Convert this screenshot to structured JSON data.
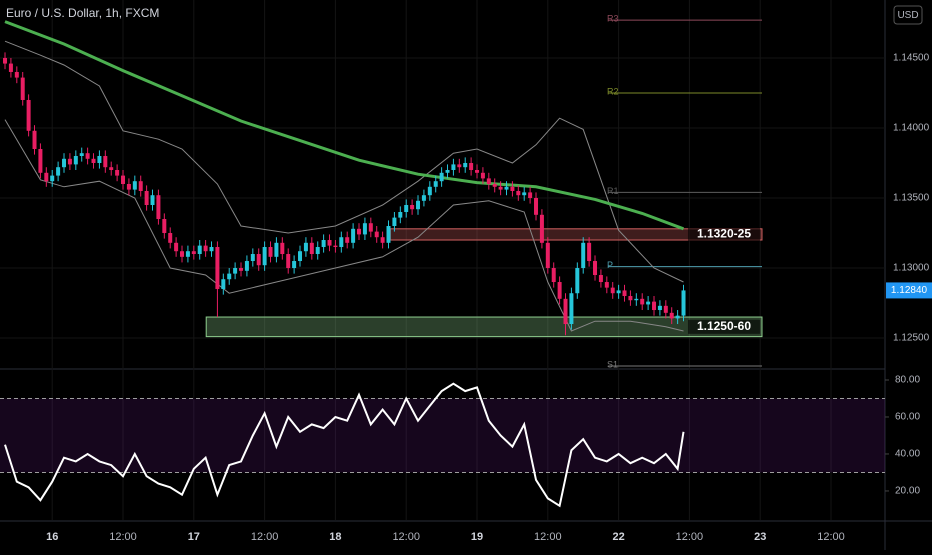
{
  "header": {
    "title": "Euro / U.S. Dollar, 1h, FXCM",
    "currency": "USD"
  },
  "chart_data": [
    {
      "type": "candlestick",
      "x": [
        0,
        1,
        2,
        3,
        4,
        5,
        6,
        7,
        8,
        9,
        10,
        11,
        12,
        13,
        14,
        15,
        16,
        17,
        18,
        19,
        20,
        21,
        22,
        23,
        24,
        25,
        26,
        27,
        28,
        29,
        30,
        31,
        32,
        33,
        34,
        35,
        36,
        37,
        38,
        39,
        40,
        41,
        42,
        43,
        44,
        45,
        46,
        47,
        48,
        49,
        50,
        51,
        52,
        53,
        54,
        55,
        56,
        57,
        58,
        59,
        60,
        61,
        62,
        63,
        64,
        65,
        66,
        67,
        68,
        69,
        70,
        71,
        72,
        73,
        74,
        75,
        76,
        77,
        78,
        79,
        80,
        81,
        82,
        83,
        84,
        85,
        86,
        87,
        88,
        89,
        90,
        91,
        92,
        93,
        94,
        95,
        96,
        97,
        98,
        99,
        100,
        101,
        102,
        103,
        104,
        105,
        106,
        107,
        108,
        109,
        110,
        111,
        112,
        113,
        114,
        115
      ],
      "open": [
        1.145,
        1.1446,
        1.144,
        1.1436,
        1.142,
        1.1398,
        1.1385,
        1.1368,
        1.1362,
        1.1366,
        1.1372,
        1.1378,
        1.1374,
        1.138,
        1.1382,
        1.1378,
        1.1375,
        1.138,
        1.1372,
        1.137,
        1.1366,
        1.136,
        1.1356,
        1.1362,
        1.1355,
        1.1345,
        1.1352,
        1.1335,
        1.1325,
        1.1318,
        1.1312,
        1.1308,
        1.1312,
        1.131,
        1.1316,
        1.1312,
        1.1315,
        1.1285,
        1.1292,
        1.1296,
        1.13,
        1.1298,
        1.1305,
        1.131,
        1.1302,
        1.1315,
        1.1308,
        1.1318,
        1.131,
        1.13,
        1.1305,
        1.1312,
        1.1318,
        1.131,
        1.1315,
        1.132,
        1.1316,
        1.1315,
        1.1322,
        1.1318,
        1.1328,
        1.1324,
        1.1332,
        1.1326,
        1.1322,
        1.1318,
        1.133,
        1.1336,
        1.134,
        1.1345,
        1.1342,
        1.1348,
        1.1352,
        1.1358,
        1.1362,
        1.1368,
        1.137,
        1.1374,
        1.1372,
        1.1375,
        1.137,
        1.1368,
        1.1364,
        1.136,
        1.1358,
        1.1356,
        1.1358,
        1.1355,
        1.1352,
        1.1354,
        1.135,
        1.1338,
        1.1318,
        1.13,
        1.129,
        1.1278,
        1.126,
        1.1282,
        1.13,
        1.1318,
        1.1305,
        1.1295,
        1.129,
        1.1286,
        1.1282,
        1.1284,
        1.128,
        1.1277,
        1.1278,
        1.1274,
        1.1276,
        1.127,
        1.1273,
        1.1268,
        1.1264,
        1.1266
      ],
      "high": [
        1.1454,
        1.145,
        1.1444,
        1.144,
        1.1424,
        1.1402,
        1.1389,
        1.1372,
        1.137,
        1.1376,
        1.1382,
        1.1382,
        1.1384,
        1.1386,
        1.1386,
        1.1382,
        1.1384,
        1.1384,
        1.1376,
        1.1374,
        1.137,
        1.1364,
        1.1366,
        1.1366,
        1.1359,
        1.1356,
        1.1356,
        1.1339,
        1.1329,
        1.1322,
        1.1316,
        1.1316,
        1.1316,
        1.132,
        1.132,
        1.1319,
        1.1319,
        1.1296,
        1.13,
        1.1304,
        1.1304,
        1.1309,
        1.1314,
        1.1314,
        1.1319,
        1.1319,
        1.1322,
        1.1322,
        1.1314,
        1.1309,
        1.1316,
        1.1322,
        1.1322,
        1.1319,
        1.1324,
        1.1324,
        1.132,
        1.1326,
        1.1326,
        1.1332,
        1.1332,
        1.1336,
        1.1336,
        1.133,
        1.1326,
        1.1334,
        1.134,
        1.1344,
        1.1349,
        1.1349,
        1.1352,
        1.1356,
        1.1362,
        1.1366,
        1.1372,
        1.1374,
        1.1378,
        1.1378,
        1.1379,
        1.1379,
        1.1374,
        1.1372,
        1.1368,
        1.1364,
        1.1362,
        1.1362,
        1.1362,
        1.1359,
        1.1358,
        1.1358,
        1.1354,
        1.1342,
        1.1322,
        1.1304,
        1.1294,
        1.1282,
        1.1286,
        1.1304,
        1.1322,
        1.1322,
        1.1309,
        1.1299,
        1.1294,
        1.129,
        1.1288,
        1.1288,
        1.1284,
        1.1282,
        1.1282,
        1.128,
        1.128,
        1.1277,
        1.1277,
        1.1272,
        1.127,
        1.1288
      ],
      "low": [
        1.1442,
        1.1436,
        1.1432,
        1.1416,
        1.1394,
        1.1381,
        1.1364,
        1.1358,
        1.1358,
        1.1362,
        1.1368,
        1.137,
        1.137,
        1.1376,
        1.1374,
        1.1371,
        1.1371,
        1.1368,
        1.1366,
        1.1362,
        1.1356,
        1.1352,
        1.1352,
        1.1351,
        1.1341,
        1.1341,
        1.1331,
        1.1321,
        1.1314,
        1.1308,
        1.1304,
        1.1304,
        1.1306,
        1.1306,
        1.1308,
        1.1308,
        1.1265,
        1.1281,
        1.1288,
        1.1292,
        1.1294,
        1.1294,
        1.1301,
        1.1298,
        1.1298,
        1.1304,
        1.1304,
        1.1306,
        1.1296,
        1.1296,
        1.1301,
        1.1308,
        1.1306,
        1.1306,
        1.1311,
        1.1312,
        1.1311,
        1.1311,
        1.1314,
        1.1314,
        1.132,
        1.132,
        1.1322,
        1.1318,
        1.1314,
        1.1314,
        1.1326,
        1.1332,
        1.1336,
        1.1338,
        1.1338,
        1.1344,
        1.1348,
        1.1354,
        1.1358,
        1.1364,
        1.1366,
        1.1368,
        1.1368,
        1.1366,
        1.1364,
        1.136,
        1.1356,
        1.1354,
        1.1352,
        1.1352,
        1.1351,
        1.1348,
        1.1348,
        1.1346,
        1.1334,
        1.1314,
        1.1296,
        1.1286,
        1.1274,
        1.1252,
        1.1256,
        1.1278,
        1.1296,
        1.1301,
        1.1291,
        1.1286,
        1.1282,
        1.1278,
        1.1278,
        1.1276,
        1.1273,
        1.1273,
        1.127,
        1.127,
        1.1266,
        1.1266,
        1.1264,
        1.126,
        1.126,
        1.1262
      ],
      "close": [
        1.1446,
        1.144,
        1.1436,
        1.142,
        1.1398,
        1.1385,
        1.1368,
        1.1362,
        1.1366,
        1.1372,
        1.1378,
        1.1374,
        1.138,
        1.1382,
        1.1378,
        1.1375,
        1.138,
        1.1372,
        1.137,
        1.1366,
        1.136,
        1.1356,
        1.1362,
        1.1355,
        1.1345,
        1.1352,
        1.1335,
        1.1325,
        1.1318,
        1.1312,
        1.1308,
        1.1312,
        1.131,
        1.1316,
        1.1312,
        1.1315,
        1.1285,
        1.1292,
        1.1296,
        1.13,
        1.1298,
        1.1305,
        1.131,
        1.1302,
        1.1315,
        1.1308,
        1.1318,
        1.131,
        1.13,
        1.1305,
        1.1312,
        1.1318,
        1.131,
        1.1315,
        1.132,
        1.1316,
        1.1315,
        1.1322,
        1.1318,
        1.1328,
        1.1324,
        1.1332,
        1.1326,
        1.1322,
        1.1318,
        1.133,
        1.1336,
        1.134,
        1.1345,
        1.1342,
        1.1348,
        1.1352,
        1.1358,
        1.1362,
        1.1368,
        1.137,
        1.1374,
        1.1372,
        1.1375,
        1.137,
        1.1368,
        1.1364,
        1.136,
        1.1358,
        1.1356,
        1.1358,
        1.1355,
        1.1352,
        1.1354,
        1.135,
        1.1338,
        1.1318,
        1.13,
        1.129,
        1.1278,
        1.126,
        1.1282,
        1.13,
        1.1318,
        1.1305,
        1.1295,
        1.129,
        1.1286,
        1.1282,
        1.1284,
        1.128,
        1.1277,
        1.1278,
        1.1274,
        1.1276,
        1.127,
        1.1273,
        1.1268,
        1.1264,
        1.1266,
        1.1284
      ],
      "up_color": "#26c6da",
      "down_color": "#e91e63",
      "xlim": [
        -0.85,
        149.15
      ],
      "ylim": [
        1.12286,
        1.14914
      ],
      "yticks": [
        {
          "value": 1.145,
          "label": "1.14500"
        },
        {
          "value": 1.14,
          "label": "1.14000"
        },
        {
          "value": 1.135,
          "label": "1.13500"
        },
        {
          "value": 1.13,
          "label": "1.13000"
        },
        {
          "value": 1.125,
          "label": "1.12500"
        }
      ],
      "xticks": [
        {
          "value": 8,
          "label": "16"
        },
        {
          "value": 20,
          "label": "12:00"
        },
        {
          "value": 32,
          "label": "17"
        },
        {
          "value": 44,
          "label": "12:00"
        },
        {
          "value": 56,
          "label": "18"
        },
        {
          "value": 68,
          "label": "12:00"
        },
        {
          "value": 80,
          "label": "19"
        },
        {
          "value": 92,
          "label": "12:00"
        },
        {
          "value": 104,
          "label": "22"
        },
        {
          "value": 116,
          "label": "12:00"
        },
        {
          "value": 128,
          "label": "23"
        },
        {
          "value": 140,
          "label": "12:00"
        }
      ],
      "grid": true,
      "last_price": {
        "value": 1.1284,
        "label": "1.12840",
        "color": "#2196f3"
      },
      "lines": [
        {
          "color": "#888888",
          "x": [
            0,
            6,
            10,
            16,
            20,
            26,
            30,
            36,
            40,
            48,
            56,
            64,
            70,
            76,
            80,
            86,
            90,
            94,
            98,
            104,
            110,
            115
          ],
          "values": [
            1.1462,
            1.1452,
            1.1445,
            1.143,
            1.1398,
            1.1392,
            1.1385,
            1.136,
            1.133,
            1.1325,
            1.133,
            1.1345,
            1.1362,
            1.1382,
            1.1385,
            1.1375,
            1.1388,
            1.1407,
            1.1399,
            1.1327,
            1.13,
            1.129
          ]
        },
        {
          "color": "#888888",
          "x": [
            0,
            6,
            10,
            16,
            22,
            28,
            34,
            38,
            46,
            56,
            64,
            70,
            76,
            82,
            88,
            92,
            96,
            100,
            106,
            112,
            115
          ],
          "values": [
            1.1406,
            1.1363,
            1.1358,
            1.1362,
            1.135,
            1.13,
            1.1295,
            1.1282,
            1.129,
            1.13,
            1.1308,
            1.1322,
            1.1345,
            1.1348,
            1.134,
            1.129,
            1.1255,
            1.1262,
            1.1262,
            1.1258,
            1.1255
          ]
        },
        {
          "color": "#4caf50",
          "x": [
            0,
            10,
            20,
            30,
            40,
            50,
            60,
            70,
            80,
            90,
            100,
            108,
            115
          ],
          "values": [
            1.1476,
            1.146,
            1.1441,
            1.1423,
            1.1405,
            1.1391,
            1.1377,
            1.1367,
            1.1361,
            1.1358,
            1.1349,
            1.1339,
            1.1328
          ]
        }
      ],
      "levels": [
        {
          "label": "R3",
          "value": 1.1477,
          "color": "#8e4a5b"
        },
        {
          "label": "R2",
          "value": 1.1425,
          "color": "#7c8a2a"
        },
        {
          "label": "R1",
          "value": 1.1354,
          "color": "#5d5d5d"
        },
        {
          "label": "P",
          "value": 1.1301,
          "color": "#4f9fb0"
        },
        {
          "label": "S1",
          "value": 1.123,
          "color": "#777777"
        }
      ],
      "zones": [
        {
          "label": "1.1320-25",
          "low": 1.132,
          "high": 1.1328,
          "x": [
            65.3,
            128.3
          ],
          "color": "#d06060"
        },
        {
          "label": "1.1250-60",
          "low": 1.1251,
          "high": 1.1265,
          "x": [
            34.1,
            128.3
          ],
          "color": "#8fd08f"
        }
      ]
    },
    {
      "type": "line",
      "x": [
        0,
        2,
        4,
        6,
        8,
        10,
        12,
        14,
        16,
        18,
        20,
        22,
        24,
        26,
        28,
        30,
        32,
        34,
        36,
        38,
        40,
        42,
        44,
        46,
        48,
        50,
        52,
        54,
        56,
        58,
        60,
        62,
        64,
        66,
        68,
        70,
        72,
        74,
        76,
        78,
        80,
        82,
        84,
        86,
        88,
        90,
        92,
        94,
        96,
        98,
        100,
        102,
        104,
        106,
        108,
        110,
        112,
        114,
        115
      ],
      "values": [
        45,
        25,
        22,
        15,
        25,
        38,
        36,
        40,
        36,
        34,
        28,
        40,
        28,
        24,
        22,
        18,
        32,
        38,
        18,
        34,
        36,
        50,
        62,
        44,
        60,
        52,
        56,
        54,
        60,
        58,
        72,
        56,
        64,
        56,
        70,
        58,
        66,
        74,
        78,
        74,
        76,
        58,
        50,
        44,
        56,
        26,
        16,
        12,
        42,
        48,
        38,
        36,
        40,
        35,
        38,
        35,
        40,
        32,
        52
      ],
      "color": "#ffffff",
      "ylim": [
        4.3,
        85.4
      ],
      "band": [
        30,
        70
      ],
      "band_color": "#7b1fa2",
      "yticks": [
        {
          "value": 80,
          "label": "80.00"
        },
        {
          "value": 60,
          "label": "60.00"
        },
        {
          "value": 40,
          "label": "40.00"
        },
        {
          "value": 20,
          "label": "20.00"
        }
      ]
    }
  ]
}
